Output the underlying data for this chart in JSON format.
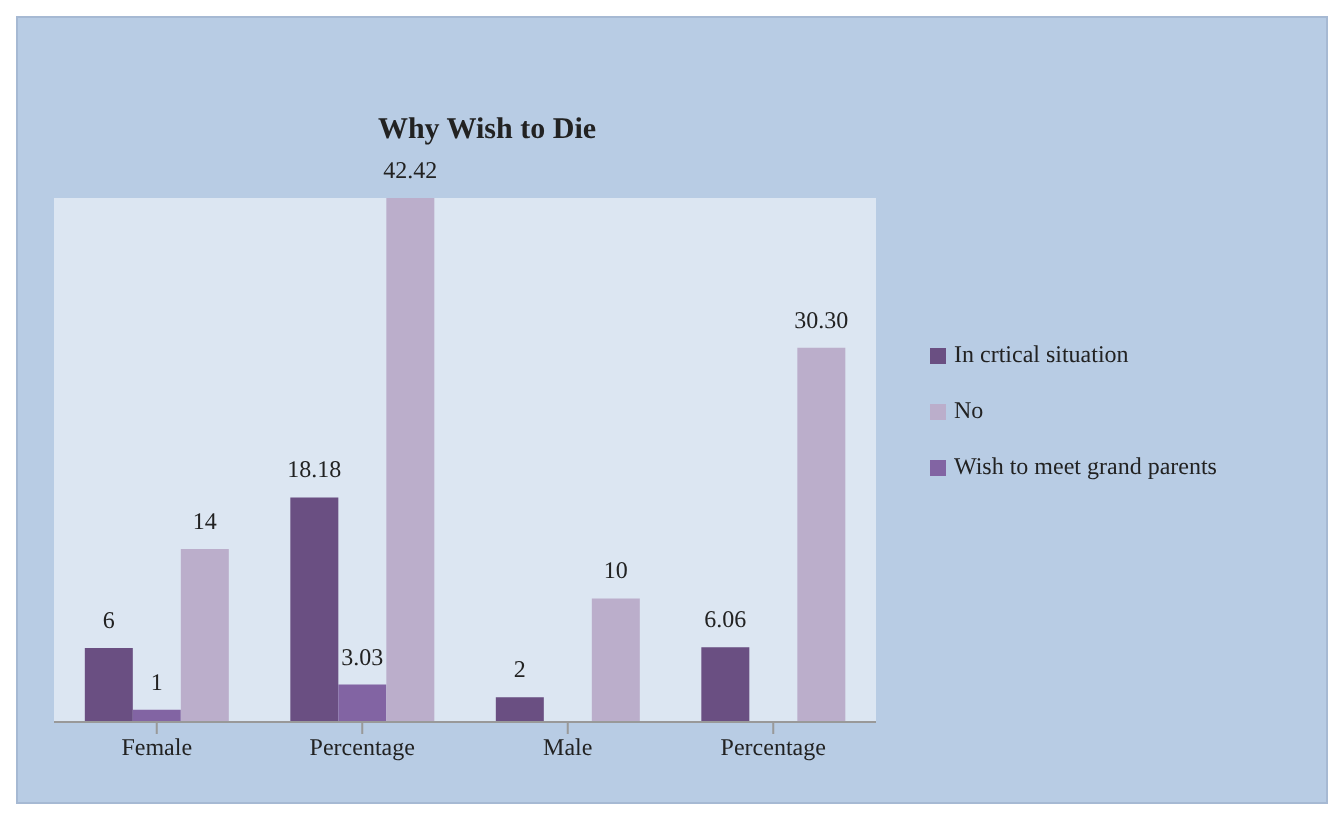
{
  "chart_data": {
    "type": "bar",
    "title": "Why Wish to Die",
    "categories": [
      "Female",
      "Percentage",
      "Male",
      "Percentage"
    ],
    "series": [
      {
        "name": "In crtical situation",
        "color": "#6a4f82",
        "values": [
          6,
          18.18,
          2,
          6.06
        ],
        "value_labels": [
          "6",
          "18.18",
          "2",
          "6.06"
        ]
      },
      {
        "name": "Wish to meet grand parents",
        "color": "#8264a3",
        "values": [
          1,
          3.03,
          null,
          null
        ],
        "value_labels": [
          "1",
          "3.03",
          null,
          null
        ]
      },
      {
        "name": "No",
        "color": "#bbaecb",
        "values": [
          14,
          42.42,
          10,
          30.3
        ],
        "value_labels": [
          "14",
          "42.42",
          "10",
          "30.30"
        ]
      }
    ],
    "legend": "right",
    "grid": false
  }
}
